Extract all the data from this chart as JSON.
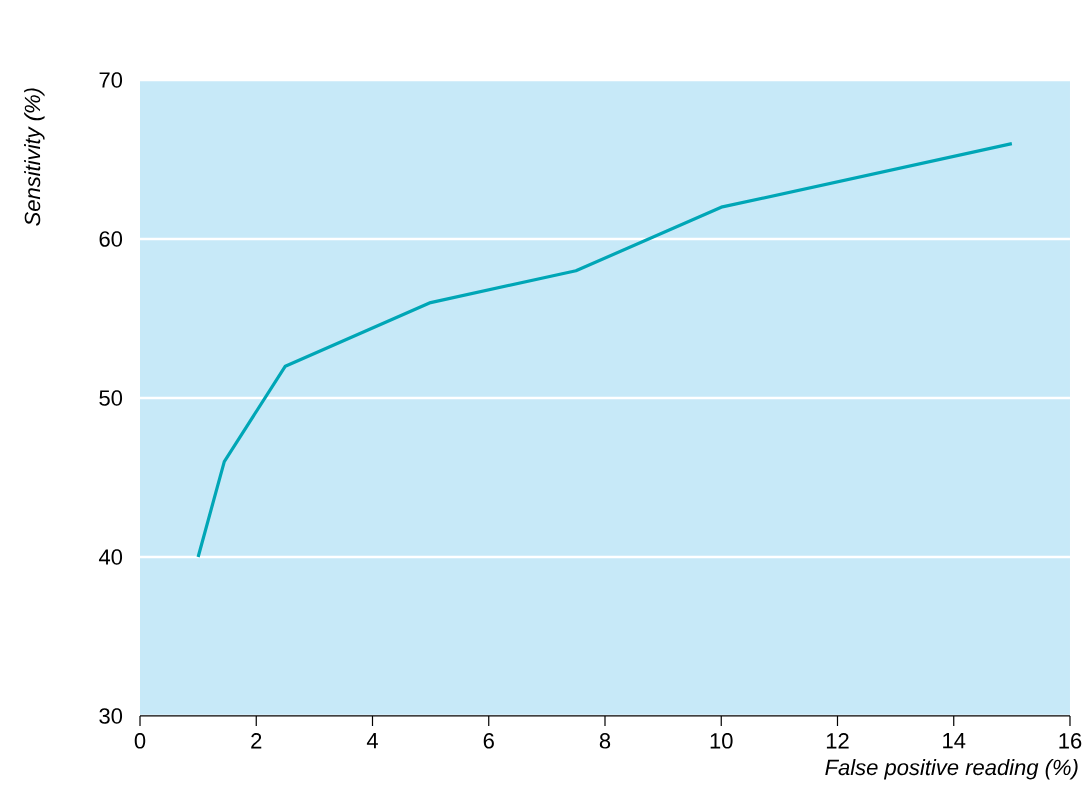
{
  "chart_data": {
    "type": "line",
    "xlabel": "False positive reading (%)",
    "ylabel": "Sensitivity (%)",
    "x": [
      1,
      1.45,
      2.5,
      5,
      7.5,
      10,
      15
    ],
    "series": [
      {
        "color": "#00a6b6",
        "values": [
          40,
          46,
          52,
          56,
          58,
          62,
          66
        ]
      }
    ],
    "xlim": [
      0,
      16
    ],
    "ylim": [
      30,
      70
    ],
    "xticks": [
      0,
      2,
      4,
      6,
      8,
      10,
      12,
      14,
      16
    ],
    "yticks": [
      30,
      40,
      50,
      60,
      70
    ],
    "grid": "y",
    "marker": "none",
    "line_style": "solid"
  }
}
